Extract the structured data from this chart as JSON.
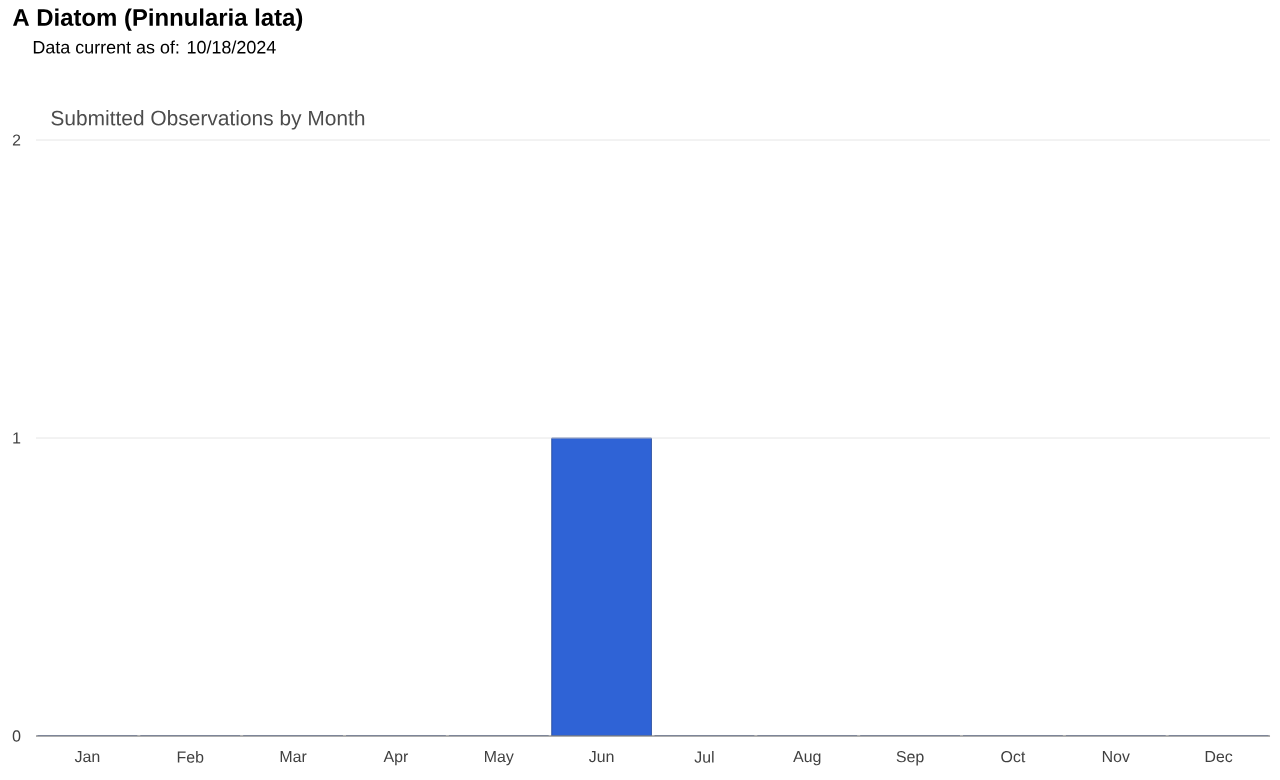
{
  "chart_data": {
    "type": "bar",
    "title": "A Diatom   (Pinnularia lata)",
    "subtitle": "Data current as of: 10/18/2024",
    "annotations": [
      "Submitted Observations by Month"
    ],
    "categories": [
      "Jan",
      "Feb",
      "Mar",
      "Apr",
      "May",
      "Jun",
      "Jul",
      "Aug",
      "Sep",
      "Oct",
      "Nov",
      "Dec"
    ],
    "values": [
      0,
      0,
      0,
      0,
      0,
      1,
      0,
      0,
      0,
      0,
      0,
      0
    ],
    "color": "#2f63d6",
    "ylim": [
      0,
      2
    ],
    "yticks": [
      0,
      1,
      2
    ],
    "grid": "y"
  }
}
